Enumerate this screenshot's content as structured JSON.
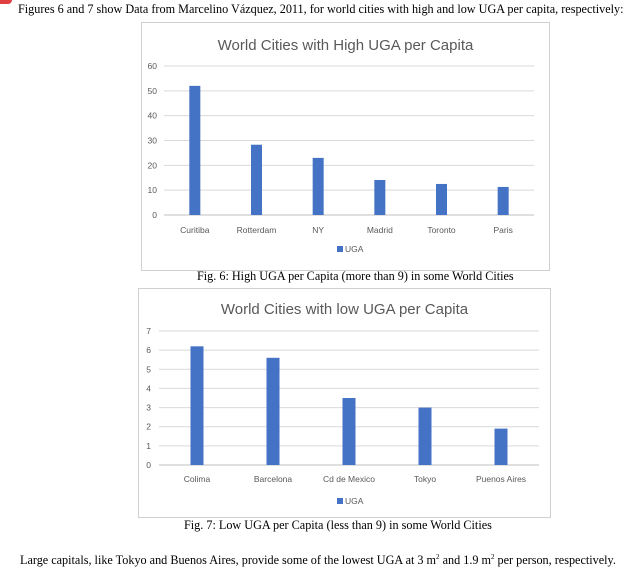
{
  "intro_text": "Figures 6 and 7 show Data from Marcelino Vázquez, 2011, for world cities with high and low UGA per capita, respectively:",
  "chart_data": [
    {
      "type": "bar",
      "title": "World Cities with High UGA per Capita",
      "categories": [
        "Curitiba",
        "Rotterdam",
        "NY",
        "Madrid",
        "Toronto",
        "Paris"
      ],
      "series": [
        {
          "name": "UGA",
          "values": [
            52,
            28.3,
            23,
            14.1,
            12.5,
            11.3
          ]
        }
      ],
      "yticks": [
        "0",
        "10",
        "20",
        "30",
        "40",
        "50",
        "60"
      ],
      "ylim": [
        0,
        60
      ],
      "grid": true,
      "legend": "bottom",
      "color": "#4472c4"
    },
    {
      "type": "bar",
      "title": "World Cities with low UGA per Capita",
      "categories": [
        "Colima",
        "Barcelona",
        "Cd de Mexico",
        "Tokyo",
        "Puenos Aires"
      ],
      "series": [
        {
          "name": "UGA",
          "values": [
            6.2,
            5.6,
            3.5,
            3,
            1.9
          ]
        }
      ],
      "yticks": [
        "0",
        "1",
        "2",
        "3",
        "4",
        "5",
        "6",
        "7"
      ],
      "ylim": [
        0,
        7
      ],
      "grid": true,
      "legend": "bottom",
      "color": "#4472c4"
    }
  ],
  "captions": [
    "Fig. 6: High UGA per Capita (more than 9) in some World Cities",
    "Fig. 7: Low UGA per Capita (less than 9) in some World Cities"
  ],
  "closing": {
    "before": "Large capitals, like Tokyo and Buenos Aires, provide some of the lowest UGA at 3 m",
    "sup1": "2",
    "middle": " and 1.9 m",
    "sup2": "2",
    "after": " per person, respectively."
  }
}
